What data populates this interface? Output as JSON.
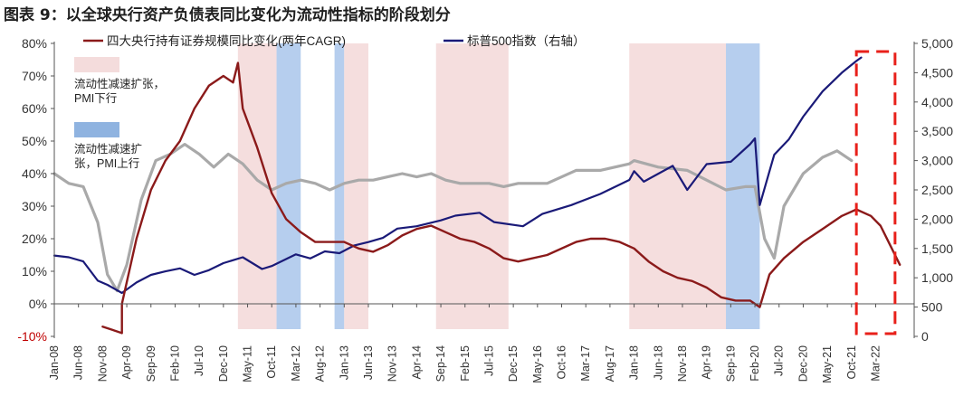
{
  "chart_data": {
    "type": "line",
    "title": "图表 9：以全球央行资产负债表同比变化为流动性指标的阶段划分",
    "xlabel": "",
    "ylabel": "",
    "ylim_left": [
      -10,
      80
    ],
    "ylim_right": [
      0,
      5000
    ],
    "grid": false,
    "legend_position": "top",
    "y_left_ticks": [
      "-10%",
      "0%",
      "10%",
      "20%",
      "30%",
      "40%",
      "50%",
      "60%",
      "70%",
      "80%"
    ],
    "y_right_ticks": [
      "0",
      "500",
      "1,000",
      "1,500",
      "2,000",
      "2,500",
      "3,000",
      "3,500",
      "4,000",
      "4,500",
      "5,000"
    ],
    "x_ticks": [
      "Jan-08",
      "Jun-08",
      "Nov-08",
      "Apr-09",
      "Sep-09",
      "Feb-10",
      "Jul-10",
      "Dec-10",
      "May-11",
      "Oct-11",
      "Mar-12",
      "Aug-12",
      "Jan-13",
      "Jun-13",
      "Nov-13",
      "Apr-14",
      "Sep-14",
      "Feb-15",
      "Jul-15",
      "Dec-15",
      "May-16",
      "Oct-16",
      "Mar-17",
      "Aug-17",
      "Jan-18",
      "Jun-18",
      "Nov-18",
      "Apr-19",
      "Sep-19",
      "Feb-20",
      "Jul-20",
      "Dec-20",
      "May-21",
      "Oct-21",
      "Mar-22"
    ],
    "legend": {
      "cagr_label": "四大央行持有证券规模同比变化(两年CAGR)",
      "spx_label": "标普500指数（右轴）"
    },
    "annotations": {
      "pink_legend": [
        "流动性减速扩张，",
        "PMI下行"
      ],
      "blue_legend": [
        "流动性减速扩",
        "张，PMI上行"
      ]
    },
    "colors": {
      "cagr": "#8b1a1a",
      "spx": "#1a1a78",
      "pmi": "#a9a9a9",
      "pink_band": "#f4dcdc",
      "blue_band": "#9dbde8",
      "axis": "#555555",
      "highlight": "#e8201a"
    },
    "shaded_periods": [
      {
        "type": "pink",
        "start": "2011-03",
        "end": "2011-11"
      },
      {
        "type": "blue",
        "start": "2011-11",
        "end": "2012-04"
      },
      {
        "type": "blue",
        "start": "2012-11",
        "end": "2013-01"
      },
      {
        "type": "pink",
        "start": "2013-01",
        "end": "2013-06"
      },
      {
        "type": "pink",
        "start": "2014-08",
        "end": "2015-11"
      },
      {
        "type": "pink",
        "start": "2017-12",
        "end": "2019-08"
      },
      {
        "type": "blue",
        "start": "2019-08",
        "end": "2020-03"
      }
    ],
    "highlight_box": {
      "start": "2021-11",
      "end": "2022-07"
    },
    "series": [
      {
        "name": "四大央行持有证券规模同比变化(两年CAGR)",
        "axis": "left",
        "points": [
          [
            "2008-11",
            -7
          ],
          [
            "2009-01",
            -8
          ],
          [
            "2009-03",
            -9
          ],
          [
            "2009-03",
            0
          ],
          [
            "2009-06",
            20
          ],
          [
            "2009-09",
            35
          ],
          [
            "2009-12",
            44
          ],
          [
            "2010-03",
            50
          ],
          [
            "2010-06",
            60
          ],
          [
            "2010-09",
            67
          ],
          [
            "2010-12",
            70
          ],
          [
            "2011-02",
            68
          ],
          [
            "2011-03",
            74
          ],
          [
            "2011-04",
            60
          ],
          [
            "2011-07",
            48
          ],
          [
            "2011-10",
            34
          ],
          [
            "2012-01",
            26
          ],
          [
            "2012-04",
            22
          ],
          [
            "2012-07",
            19
          ],
          [
            "2012-10",
            19
          ],
          [
            "2013-01",
            19
          ],
          [
            "2013-04",
            17
          ],
          [
            "2013-07",
            16
          ],
          [
            "2013-10",
            18
          ],
          [
            "2014-01",
            21
          ],
          [
            "2014-04",
            23
          ],
          [
            "2014-07",
            24
          ],
          [
            "2014-10",
            22
          ],
          [
            "2015-01",
            20
          ],
          [
            "2015-04",
            19
          ],
          [
            "2015-07",
            17
          ],
          [
            "2015-10",
            14
          ],
          [
            "2016-01",
            13
          ],
          [
            "2016-07",
            15
          ],
          [
            "2017-01",
            19
          ],
          [
            "2017-04",
            20
          ],
          [
            "2017-07",
            20
          ],
          [
            "2017-10",
            19
          ],
          [
            "2018-01",
            17
          ],
          [
            "2018-04",
            13
          ],
          [
            "2018-07",
            10
          ],
          [
            "2018-10",
            8
          ],
          [
            "2019-01",
            7
          ],
          [
            "2019-04",
            5
          ],
          [
            "2019-07",
            2
          ],
          [
            "2019-10",
            1
          ],
          [
            "2020-01",
            1
          ],
          [
            "2020-03",
            -1
          ],
          [
            "2020-05",
            9
          ],
          [
            "2020-08",
            14
          ],
          [
            "2020-12",
            19
          ],
          [
            "2021-04",
            23
          ],
          [
            "2021-08",
            27
          ],
          [
            "2021-11",
            29
          ],
          [
            "2022-02",
            27
          ],
          [
            "2022-04",
            24
          ],
          [
            "2022-06",
            18
          ],
          [
            "2022-08",
            12
          ]
        ]
      },
      {
        "name": "标普500指数（右轴）",
        "axis": "right",
        "points": [
          [
            "2008-01",
            1380
          ],
          [
            "2008-04",
            1350
          ],
          [
            "2008-07",
            1280
          ],
          [
            "2008-10",
            950
          ],
          [
            "2008-12",
            880
          ],
          [
            "2009-03",
            740
          ],
          [
            "2009-06",
            920
          ],
          [
            "2009-09",
            1050
          ],
          [
            "2009-12",
            1110
          ],
          [
            "2010-03",
            1160
          ],
          [
            "2010-06",
            1050
          ],
          [
            "2010-09",
            1130
          ],
          [
            "2010-12",
            1250
          ],
          [
            "2011-04",
            1350
          ],
          [
            "2011-08",
            1150
          ],
          [
            "2011-10",
            1200
          ],
          [
            "2012-03",
            1400
          ],
          [
            "2012-06",
            1330
          ],
          [
            "2012-09",
            1450
          ],
          [
            "2012-12",
            1420
          ],
          [
            "2013-03",
            1550
          ],
          [
            "2013-06",
            1610
          ],
          [
            "2013-09",
            1680
          ],
          [
            "2013-12",
            1840
          ],
          [
            "2014-04",
            1880
          ],
          [
            "2014-09",
            1980
          ],
          [
            "2014-12",
            2060
          ],
          [
            "2015-05",
            2110
          ],
          [
            "2015-08",
            1950
          ],
          [
            "2016-02",
            1880
          ],
          [
            "2016-06",
            2090
          ],
          [
            "2016-12",
            2240
          ],
          [
            "2017-06",
            2430
          ],
          [
            "2017-12",
            2670
          ],
          [
            "2018-01",
            2820
          ],
          [
            "2018-03",
            2640
          ],
          [
            "2018-09",
            2910
          ],
          [
            "2018-12",
            2500
          ],
          [
            "2019-04",
            2940
          ],
          [
            "2019-09",
            2980
          ],
          [
            "2020-01",
            3280
          ],
          [
            "2020-02",
            3380
          ],
          [
            "2020-03",
            2240
          ],
          [
            "2020-06",
            3100
          ],
          [
            "2020-09",
            3360
          ],
          [
            "2020-12",
            3750
          ],
          [
            "2021-04",
            4180
          ],
          [
            "2021-08",
            4500
          ],
          [
            "2021-11",
            4700
          ],
          [
            "2021-12",
            4760
          ]
        ]
      },
      {
        "name": "",
        "axis": "left",
        "points": [
          [
            "2008-01",
            40
          ],
          [
            "2008-04",
            37
          ],
          [
            "2008-07",
            36
          ],
          [
            "2008-10",
            25
          ],
          [
            "2008-12",
            9
          ],
          [
            "2009-02",
            4
          ],
          [
            "2009-04",
            12
          ],
          [
            "2009-07",
            32
          ],
          [
            "2009-10",
            44
          ],
          [
            "2010-01",
            46
          ],
          [
            "2010-04",
            49
          ],
          [
            "2010-07",
            46
          ],
          [
            "2010-10",
            42
          ],
          [
            "2011-01",
            46
          ],
          [
            "2011-04",
            43
          ],
          [
            "2011-07",
            38
          ],
          [
            "2011-10",
            35
          ],
          [
            "2012-01",
            37
          ],
          [
            "2012-04",
            38
          ],
          [
            "2012-07",
            37
          ],
          [
            "2012-10",
            35
          ],
          [
            "2013-01",
            37
          ],
          [
            "2013-04",
            38
          ],
          [
            "2013-07",
            38
          ],
          [
            "2013-10",
            39
          ],
          [
            "2014-01",
            40
          ],
          [
            "2014-04",
            39
          ],
          [
            "2014-07",
            40
          ],
          [
            "2014-10",
            38
          ],
          [
            "2015-01",
            37
          ],
          [
            "2015-04",
            37
          ],
          [
            "2015-07",
            37
          ],
          [
            "2015-10",
            36
          ],
          [
            "2016-01",
            37
          ],
          [
            "2016-07",
            37
          ],
          [
            "2017-01",
            41
          ],
          [
            "2017-06",
            41
          ],
          [
            "2017-12",
            43
          ],
          [
            "2018-01",
            44
          ],
          [
            "2018-06",
            42
          ],
          [
            "2018-12",
            41
          ],
          [
            "2019-04",
            38
          ],
          [
            "2019-08",
            35
          ],
          [
            "2019-12",
            36
          ],
          [
            "2020-02",
            36
          ],
          [
            "2020-04",
            20
          ],
          [
            "2020-06",
            14
          ],
          [
            "2020-08",
            30
          ],
          [
            "2020-12",
            40
          ],
          [
            "2021-04",
            45
          ],
          [
            "2021-07",
            47
          ],
          [
            "2021-10",
            44
          ]
        ]
      }
    ]
  }
}
